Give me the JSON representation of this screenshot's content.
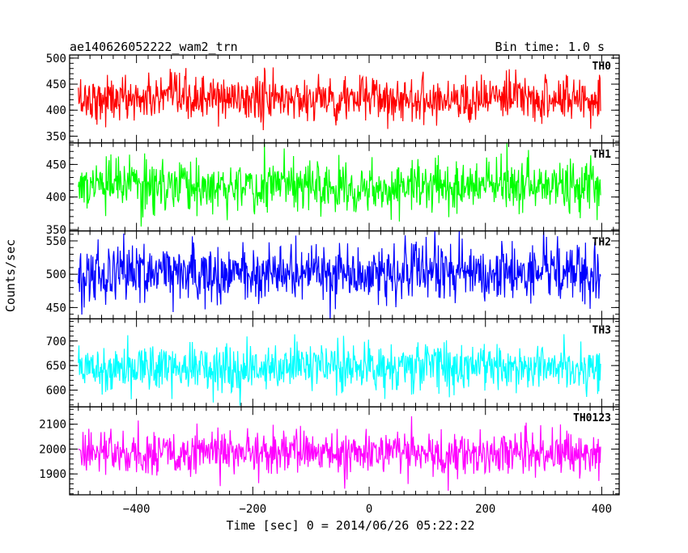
{
  "header": {
    "title_left": "ae140626052222_wam2_trn",
    "title_right": "Bin time: 1.0 s"
  },
  "chart_data": {
    "type": "line",
    "title": "ae140626052222_wam2_trn",
    "subtitle": "Bin time: 1.0 s",
    "xlabel": "Time [sec] 0 = 2014/06/26 05:22:22",
    "ylabel": "Counts/sec",
    "xlim": [
      -515,
      430
    ],
    "x_ticks": [
      -400,
      -200,
      0,
      200,
      400
    ],
    "x_tick_labels": [
      "−400",
      "−200",
      "0",
      "200",
      "400"
    ],
    "x_start": -500,
    "x_end": 398,
    "bin_time": 1.0,
    "grid": false,
    "panels": [
      {
        "name": "TH0",
        "color": "#ff0000",
        "ylim": [
          337,
          506
        ],
        "y_ticks": [
          350,
          400,
          450,
          500
        ],
        "mean": 422,
        "sigma": 22
      },
      {
        "name": "TH1",
        "color": "#00ff00",
        "ylim": [
          348,
          483
        ],
        "y_ticks": [
          350,
          400,
          450
        ],
        "mean": 417,
        "sigma": 20
      },
      {
        "name": "TH2",
        "color": "#0000ff",
        "ylim": [
          433,
          565
        ],
        "y_ticks": [
          450,
          500,
          550
        ],
        "mean": 502,
        "sigma": 22
      },
      {
        "name": "TH3",
        "color": "#00ffff",
        "ylim": [
          566,
          745
        ],
        "y_ticks": [
          600,
          650,
          700
        ],
        "mean": 648,
        "sigma": 25
      },
      {
        "name": "TH0123",
        "color": "#ff00ff",
        "ylim": [
          1816,
          2170
        ],
        "y_ticks": [
          1900,
          2000,
          2100
        ],
        "mean": 1985,
        "sigma": 45
      }
    ]
  }
}
